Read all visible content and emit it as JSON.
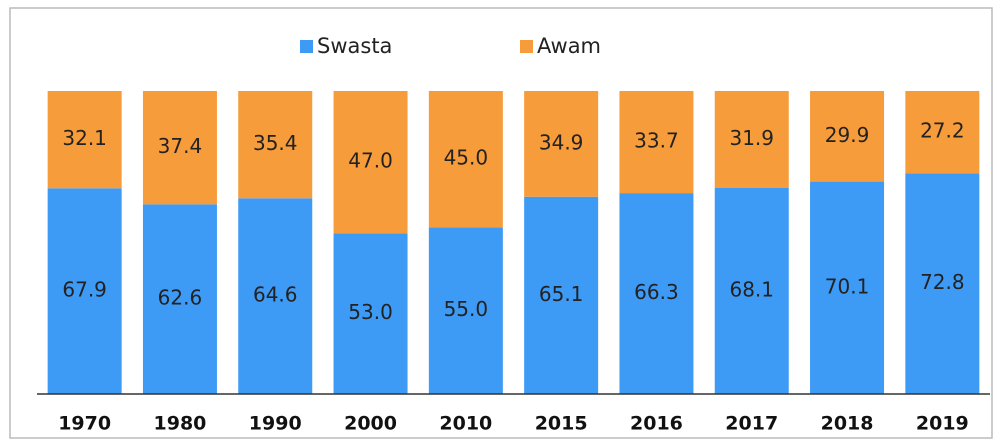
{
  "chart_data": {
    "type": "stacked_bar",
    "categories": [
      "1970",
      "1980",
      "1990",
      "2000",
      "2010",
      "2015",
      "2016",
      "2017",
      "2018",
      "2019"
    ],
    "series": [
      {
        "name": "Swasta",
        "color": "#3d9af5",
        "values": [
          67.9,
          62.6,
          64.6,
          53.0,
          55.0,
          65.1,
          66.3,
          68.1,
          70.1,
          72.8
        ],
        "value_labels": [
          "67.9",
          "62.6",
          "64.6",
          "53.0",
          "55.0",
          "65.1",
          "66.3",
          "68.1",
          "70.1",
          "72.8"
        ]
      },
      {
        "name": "Awam",
        "color": "#f79c3b",
        "values": [
          32.1,
          37.4,
          35.4,
          47.0,
          45.0,
          34.9,
          33.7,
          31.9,
          29.9,
          27.2
        ],
        "value_labels": [
          "32.1",
          "37.4",
          "35.4",
          "47.0",
          "45.0",
          "34.9",
          "33.7",
          "31.9",
          "29.9",
          "27.2"
        ]
      }
    ],
    "ylim": [
      0,
      100
    ]
  }
}
